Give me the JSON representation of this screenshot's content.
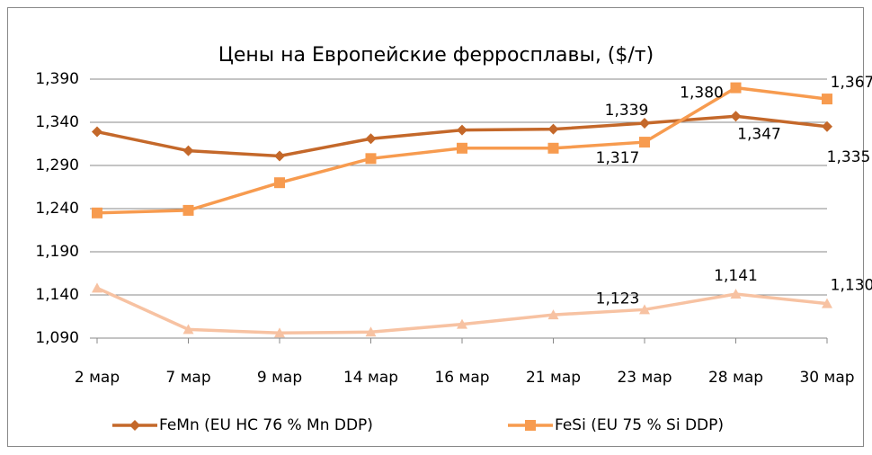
{
  "chart_data": {
    "type": "line",
    "title": "Цены на Европейские ферросплавы, ($/т)",
    "categories": [
      "2 мар",
      "7 мар",
      "9 мар",
      "14 мар",
      "16 мар",
      "21 мар",
      "23 мар",
      "28 мар",
      "30 мар"
    ],
    "series": [
      {
        "name": "FeMn (EU HC 76 % Mn DDP)",
        "color": "#c4682a",
        "marker": "diamond",
        "values": [
          1329,
          1307,
          1301,
          1321,
          1331,
          1332,
          1339,
          1347,
          1335
        ],
        "value_labels": [
          null,
          null,
          null,
          null,
          null,
          null,
          "1,339",
          "1,347",
          "1,335"
        ]
      },
      {
        "name": "FeSi (EU 75 % Si DDP)",
        "color": "#f79b4f",
        "marker": "square",
        "values": [
          1235,
          1238,
          1270,
          1298,
          1310,
          1310,
          1317,
          1380,
          1367
        ],
        "value_labels": [
          null,
          null,
          null,
          null,
          null,
          null,
          "1,317",
          "1,380",
          "1,367"
        ]
      },
      {
        "color": "#f7c2a2",
        "marker": "triangle",
        "values": [
          1148,
          1100,
          1096,
          1097,
          1106,
          1117,
          1123,
          1141,
          1130
        ],
        "value_labels": [
          null,
          null,
          null,
          null,
          null,
          null,
          "1,123",
          "1,141",
          "1,130"
        ]
      }
    ],
    "ylim": [
      1090,
      1390
    ],
    "yticks": [
      {
        "value": 1090,
        "label": "1,090"
      },
      {
        "value": 1140,
        "label": "1,140"
      },
      {
        "value": 1190,
        "label": "1,190"
      },
      {
        "value": 1240,
        "label": "1,240"
      },
      {
        "value": 1290,
        "label": "1,290"
      },
      {
        "value": 1340,
        "label": "1,340"
      },
      {
        "value": 1390,
        "label": "1,390"
      }
    ],
    "grid": true
  }
}
